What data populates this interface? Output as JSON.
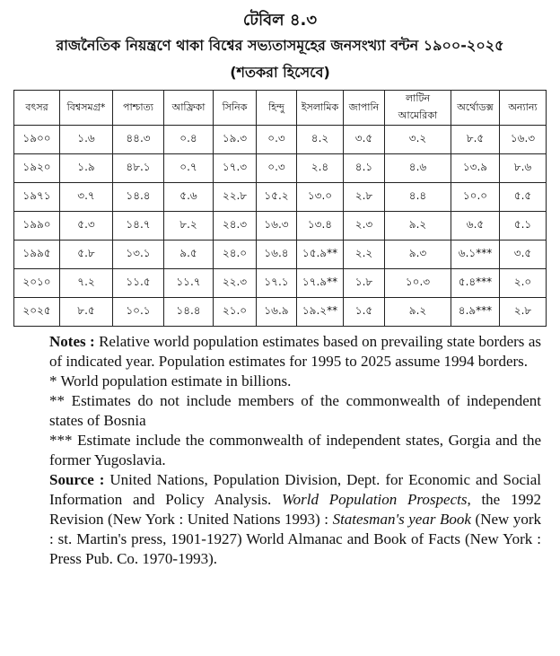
{
  "header": {
    "table_label": "টেবিল ৪.৩",
    "title": "রাজনৈতিক নিয়ন্ত্রণে থাকা বিশ্বের সভ্যতাসমূহের জনসংখ্যা বন্টন ১৯০০-২০২৫",
    "subtitle": "(শতকরা হিসেবে)"
  },
  "table": {
    "columns": [
      "বৎসর",
      "বিশ্বসমগ্র*",
      "পাশ্চাত্য",
      "আফ্রিকা",
      "সিনিক",
      "হিন্দু",
      "ইসলামিক",
      "জাপানি",
      "লাটিন আমেরিকা",
      "অর্থোডক্স",
      "অন্যান্য"
    ],
    "rows": [
      [
        "১৯০০",
        "১.৬",
        "৪৪.৩",
        "০.৪",
        "১৯.৩",
        "০.৩",
        "৪.২",
        "৩.৫",
        "৩.২",
        "৮.৫",
        "১৬.৩"
      ],
      [
        "১৯২০",
        "১.৯",
        "৪৮.১",
        "০.৭",
        "১৭.৩",
        "০.৩",
        "২.৪",
        "৪.১",
        "৪.৬",
        "১৩.৯",
        "৮.৬"
      ],
      [
        "১৯৭১",
        "৩.৭",
        "১৪.৪",
        "৫.৬",
        "২২.৮",
        "১৫.২",
        "১৩.০",
        "২.৮",
        "৪.৪",
        "১০.০",
        "৫.৫"
      ],
      [
        "১৯৯০",
        "৫.৩",
        "১৪.৭",
        "৮.২",
        "২৪.৩",
        "১৬.৩",
        "১৩.৪",
        "২.৩",
        "৯.২",
        "৬.৫",
        "৫.১"
      ],
      [
        "১৯৯৫",
        "৫.৮",
        "১৩.১",
        "৯.৫",
        "২৪.০",
        "১৬.৪",
        "১৫.৯**",
        "২.২",
        "৯.৩",
        "৬.১***",
        "৩.৫"
      ],
      [
        "২০১০",
        "৭.২",
        "১১.৫",
        "১১.৭",
        "২২.৩",
        "১৭.১",
        "১৭.৯**",
        "১.৮",
        "১০.৩",
        "৫.৪***",
        "২.০"
      ],
      [
        "২০২৫",
        "৮.৫",
        "১০.১",
        "১৪.৪",
        "২১.০",
        "১৬.৯",
        "১৯.২**",
        "১.৫",
        "৯.২",
        "৪.৯***",
        "২.৮"
      ]
    ]
  },
  "notes": {
    "label": "Notes :",
    "text": "Relative world population estimates based on prevailing state borders as of indicated year. Population estimates for 1995 to 2025 assume 1994 borders.",
    "items": [
      "* World population estimate in billions.",
      "** Estimates do not include members of the commonwealth of independent states of Bosnia",
      "*** Estimate include the commonwealth of independent states, Gorgia and the former Yugoslavia."
    ]
  },
  "source": {
    "label": "Source :",
    "segments": [
      {
        "text": "United Nations, Population Division, Dept. for Economic and Social Information and Policy Analysis. ",
        "italic": false
      },
      {
        "text": "World Population Prospects",
        "italic": true
      },
      {
        "text": ", the 1992 Revision (New York : United Nations 1993) : ",
        "italic": false
      },
      {
        "text": "Statesman's year Book",
        "italic": true
      },
      {
        "text": " (New york : st. Martin's press, 1901-1927) World Almanac and Book of Facts (New York : Press Pub. Co. 1970-1993).",
        "italic": false
      }
    ]
  }
}
